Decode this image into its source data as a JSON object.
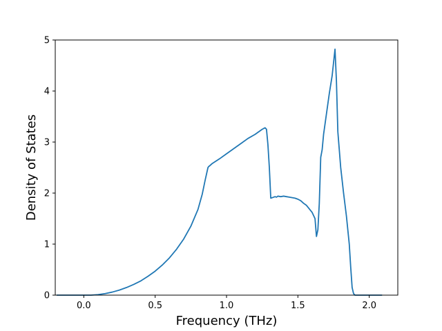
{
  "chart_data": {
    "type": "line",
    "title": "",
    "xlabel": "Frequency (THz)",
    "ylabel": "Density of States",
    "xlim": [
      -0.2,
      2.2
    ],
    "ylim": [
      0,
      5
    ],
    "grid": false,
    "legend": "none",
    "x_ticks": [
      0.0,
      0.5,
      1.0,
      1.5,
      2.0
    ],
    "x_tick_labels": [
      "0.0",
      "0.5",
      "1.0",
      "1.5",
      "2.0"
    ],
    "y_ticks": [
      0,
      1,
      2,
      3,
      4,
      5
    ],
    "y_tick_labels": [
      "0",
      "1",
      "2",
      "3",
      "4",
      "5"
    ],
    "colors": {
      "series": "#1f77b4"
    },
    "series": [
      {
        "x": [
          -0.19,
          0.0,
          0.05,
          0.1,
          0.15,
          0.2,
          0.25,
          0.3,
          0.35,
          0.4,
          0.45,
          0.5,
          0.55,
          0.6,
          0.65,
          0.7,
          0.75,
          0.8,
          0.83,
          0.85,
          0.87,
          0.875,
          0.88,
          0.9,
          0.95,
          1.0,
          1.05,
          1.1,
          1.15,
          1.2,
          1.25,
          1.27,
          1.28,
          1.29,
          1.3,
          1.31,
          1.32,
          1.34,
          1.35,
          1.36,
          1.38,
          1.4,
          1.42,
          1.44,
          1.46,
          1.48,
          1.5,
          1.52,
          1.54,
          1.56,
          1.58,
          1.6,
          1.62,
          1.63,
          1.64,
          1.65,
          1.66,
          1.67,
          1.68,
          1.7,
          1.72,
          1.74,
          1.76,
          1.77,
          1.78,
          1.79,
          1.8,
          1.82,
          1.84,
          1.86,
          1.87,
          1.88,
          1.89,
          1.9,
          1.92,
          1.95,
          2.0,
          2.05,
          2.09
        ],
        "y": [
          0,
          0,
          0,
          0.01,
          0.03,
          0.06,
          0.1,
          0.15,
          0.21,
          0.28,
          0.37,
          0.47,
          0.59,
          0.73,
          0.9,
          1.1,
          1.35,
          1.68,
          1.98,
          2.25,
          2.5,
          2.52,
          2.53,
          2.58,
          2.67,
          2.77,
          2.87,
          2.97,
          3.07,
          3.15,
          3.25,
          3.28,
          3.25,
          2.95,
          2.5,
          1.9,
          1.91,
          1.93,
          1.92,
          1.94,
          1.93,
          1.94,
          1.93,
          1.92,
          1.91,
          1.9,
          1.88,
          1.85,
          1.8,
          1.76,
          1.69,
          1.62,
          1.5,
          1.15,
          1.28,
          1.8,
          2.7,
          2.85,
          3.15,
          3.55,
          3.95,
          4.3,
          4.82,
          4.2,
          3.2,
          2.85,
          2.5,
          2.0,
          1.55,
          1.0,
          0.55,
          0.15,
          0.03,
          0,
          0,
          0,
          0,
          0,
          0
        ]
      }
    ]
  }
}
